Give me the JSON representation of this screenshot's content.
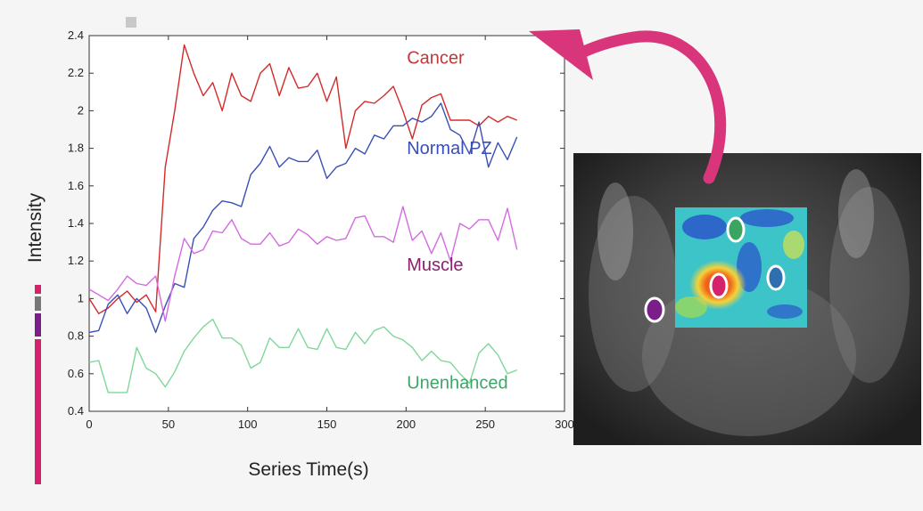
{
  "chart_data": {
    "type": "line",
    "xlabel": "Series Time(s)",
    "ylabel": "Intensity",
    "xlim": [
      0,
      300
    ],
    "ylim": [
      0.4,
      2.4
    ],
    "xticks": [
      0,
      50,
      100,
      150,
      200,
      250,
      300
    ],
    "yticks": [
      0.4,
      0.6,
      0.8,
      1,
      1.2,
      1.4,
      1.6,
      1.8,
      2,
      2.2,
      2.4
    ],
    "ytick_labels": [
      "0.4",
      "0.6",
      "0.8",
      "1",
      "1.2",
      "1.4",
      "1.6",
      "1.8",
      "2",
      "2.2",
      "2.4"
    ],
    "grid": false,
    "x": [
      0,
      6,
      12,
      18,
      24,
      30,
      36,
      42,
      48,
      54,
      60,
      66,
      72,
      78,
      84,
      90,
      96,
      102,
      108,
      114,
      120,
      126,
      132,
      138,
      144,
      150,
      156,
      162,
      168,
      174,
      180,
      186,
      192,
      198,
      204,
      210,
      216,
      222,
      228,
      234,
      240,
      246,
      252,
      258,
      264,
      270
    ],
    "series": [
      {
        "name": "Cancer",
        "color": "#d42a2a",
        "values": [
          1.0,
          0.92,
          0.95,
          1.0,
          1.04,
          0.98,
          1.02,
          0.93,
          1.7,
          2.0,
          2.35,
          2.2,
          2.08,
          2.15,
          2.0,
          2.2,
          2.08,
          2.05,
          2.2,
          2.25,
          2.08,
          2.23,
          2.12,
          2.13,
          2.2,
          2.05,
          2.18,
          1.8,
          2.0,
          2.05,
          2.04,
          2.08,
          2.13,
          2.0,
          1.85,
          2.03,
          2.07,
          2.09,
          1.95,
          1.95,
          1.95,
          1.92,
          1.97,
          1.94,
          1.97,
          1.95
        ]
      },
      {
        "name": "Normal PZ",
        "color": "#3a4fb5",
        "values": [
          0.82,
          0.83,
          0.97,
          1.02,
          0.92,
          1.0,
          0.95,
          0.82,
          0.96,
          1.08,
          1.06,
          1.32,
          1.38,
          1.47,
          1.52,
          1.51,
          1.49,
          1.66,
          1.72,
          1.81,
          1.7,
          1.75,
          1.73,
          1.73,
          1.79,
          1.64,
          1.7,
          1.72,
          1.8,
          1.77,
          1.87,
          1.85,
          1.92,
          1.92,
          1.96,
          1.94,
          1.97,
          2.04,
          1.9,
          1.87,
          1.77,
          1.94,
          1.7,
          1.83,
          1.74,
          1.86
        ]
      },
      {
        "name": "Muscle",
        "color": "#d36be0",
        "values": [
          1.05,
          1.02,
          0.99,
          1.05,
          1.12,
          1.08,
          1.07,
          1.12,
          0.88,
          1.12,
          1.32,
          1.24,
          1.26,
          1.36,
          1.35,
          1.42,
          1.32,
          1.29,
          1.29,
          1.35,
          1.28,
          1.3,
          1.37,
          1.34,
          1.29,
          1.33,
          1.31,
          1.32,
          1.43,
          1.44,
          1.33,
          1.33,
          1.3,
          1.49,
          1.31,
          1.36,
          1.24,
          1.35,
          1.2,
          1.4,
          1.37,
          1.42,
          1.42,
          1.31,
          1.48,
          1.26
        ]
      },
      {
        "name": "Unenhanced",
        "color": "#7fd79a",
        "values": [
          0.66,
          0.67,
          0.5,
          0.5,
          0.5,
          0.74,
          0.63,
          0.6,
          0.53,
          0.61,
          0.72,
          0.79,
          0.85,
          0.89,
          0.79,
          0.79,
          0.75,
          0.63,
          0.66,
          0.79,
          0.74,
          0.74,
          0.84,
          0.74,
          0.73,
          0.84,
          0.74,
          0.73,
          0.82,
          0.76,
          0.83,
          0.85,
          0.8,
          0.78,
          0.74,
          0.67,
          0.72,
          0.67,
          0.66,
          0.6,
          0.55,
          0.71,
          0.76,
          0.7,
          0.6,
          0.62
        ]
      }
    ],
    "annotations": [
      {
        "text": "Cancer",
        "x": 205,
        "y": 2.25,
        "color": "#c0393b"
      },
      {
        "text": "Normal PZ",
        "x": 205,
        "y": 1.77,
        "color": "#3a4fb5"
      },
      {
        "text": "Muscle",
        "x": 205,
        "y": 1.15,
        "color": "#8a1f6b"
      },
      {
        "text": "Unenhanced",
        "x": 205,
        "y": 0.52,
        "color": "#3fa66a"
      }
    ]
  },
  "colors": {
    "arrow": "#d9357b",
    "side_bar": "#d4236a",
    "side_bar_gray": "#777777",
    "side_bar_purple": "#7a1f8a",
    "marker_purple": "#7a1f8a",
    "marker_red": "#d4236a",
    "marker_green": "#3aa560",
    "marker_blue": "#2f6fb0"
  },
  "image": {
    "icons": [
      "mri-prostate-scan",
      "perfusion-heatmap-overlay",
      "roi-marker-muscle",
      "roi-marker-cancer",
      "roi-marker-normal-pz",
      "roi-marker-unenhanced",
      "curved-arrow"
    ]
  }
}
